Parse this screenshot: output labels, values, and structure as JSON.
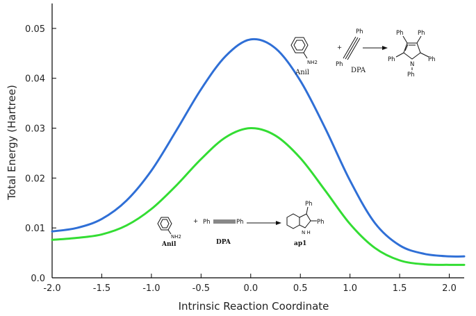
{
  "chart_data": {
    "type": "line",
    "title": "",
    "xlabel": "Intrinsic Reaction Coordinate",
    "ylabel": "Total Energy (Hartree)",
    "xlim": [
      -2.0,
      2.15
    ],
    "ylim": [
      0.0,
      0.055
    ],
    "xticks": [
      -2.0,
      -1.5,
      -1.0,
      -0.5,
      0.0,
      0.5,
      1.0,
      1.5,
      2.0
    ],
    "xtick_labels": [
      "-2.0",
      "-1.5",
      "-1.0",
      "-0.5",
      "0.0",
      "0.5",
      "1.0",
      "1.5",
      "2.0"
    ],
    "yticks": [
      0.0,
      0.01,
      0.02,
      0.03,
      0.04,
      0.05
    ],
    "ytick_labels": [
      "0.0",
      "0.01",
      "0.02",
      "0.03",
      "0.04",
      "0.05"
    ],
    "grid": false,
    "series": [
      {
        "color": "#2f6fd6",
        "x": [
          -2.0,
          -1.75,
          -1.5,
          -1.25,
          -1.0,
          -0.75,
          -0.5,
          -0.25,
          0.0,
          0.25,
          0.5,
          0.75,
          1.0,
          1.25,
          1.5,
          1.75,
          2.0,
          2.15
        ],
        "y": [
          0.0093,
          0.01,
          0.0118,
          0.0155,
          0.0215,
          0.0295,
          0.0378,
          0.0445,
          0.0478,
          0.046,
          0.0395,
          0.03,
          0.0195,
          0.011,
          0.0065,
          0.0048,
          0.0043,
          0.0043
        ]
      },
      {
        "color": "#33dd33",
        "x": [
          -2.0,
          -1.75,
          -1.5,
          -1.25,
          -1.0,
          -0.75,
          -0.5,
          -0.25,
          0.0,
          0.25,
          0.5,
          0.75,
          1.0,
          1.25,
          1.5,
          1.75,
          2.0,
          2.15
        ],
        "y": [
          0.0076,
          0.008,
          0.0087,
          0.0105,
          0.0138,
          0.0185,
          0.0238,
          0.0282,
          0.03,
          0.0285,
          0.024,
          0.0175,
          0.0108,
          0.006,
          0.0035,
          0.0027,
          0.0026,
          0.0026
        ]
      }
    ],
    "annotations": {
      "upper_scheme": {
        "reactant1": "Anil",
        "reactant1_group": "NH2",
        "plus": "+",
        "reactant2": "DPA",
        "ph": "Ph",
        "n": "N"
      },
      "lower_scheme": {
        "reactant1": "Anil",
        "reactant1_group": "NH2",
        "plus": "+",
        "reactant2": "DPA",
        "product": "ap1",
        "ph": "Ph",
        "nh": "N\nH"
      }
    }
  }
}
